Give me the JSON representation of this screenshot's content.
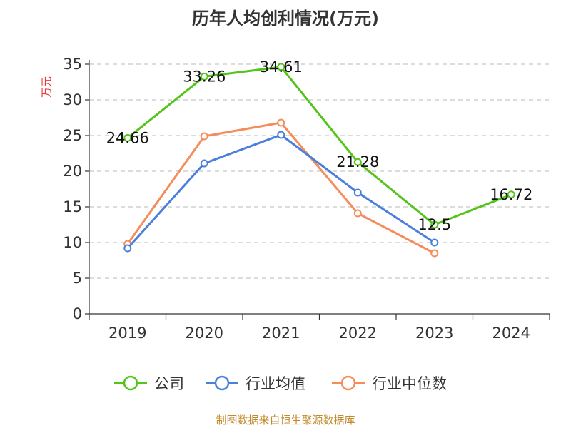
{
  "chart_data": {
    "type": "line",
    "title": "历年人均创利情况(万元)",
    "ylabel": "万元",
    "xlabel": "",
    "categories": [
      "2019",
      "2020",
      "2021",
      "2022",
      "2023",
      "2024"
    ],
    "ylim": [
      0,
      35
    ],
    "yticks": [
      0,
      5,
      10,
      15,
      20,
      25,
      30,
      35
    ],
    "grid": true,
    "legend_position": "bottom",
    "series": [
      {
        "name": "公司",
        "color": "#52c41a",
        "values": [
          24.66,
          33.26,
          34.61,
          21.28,
          12.5,
          16.72
        ],
        "labels": [
          "24.66",
          "33.26",
          "34.61",
          "21.28",
          "12.5",
          "16.72"
        ]
      },
      {
        "name": "行业均值",
        "color": "#4a7fdc",
        "values": [
          9.2,
          21.1,
          25.1,
          17.0,
          10.0,
          null
        ]
      },
      {
        "name": "行业中位数",
        "color": "#f58c5a",
        "values": [
          9.8,
          24.9,
          26.8,
          14.1,
          8.5,
          null
        ]
      }
    ]
  },
  "footer": {
    "source": "制图数据来自恒生聚源数据库"
  }
}
